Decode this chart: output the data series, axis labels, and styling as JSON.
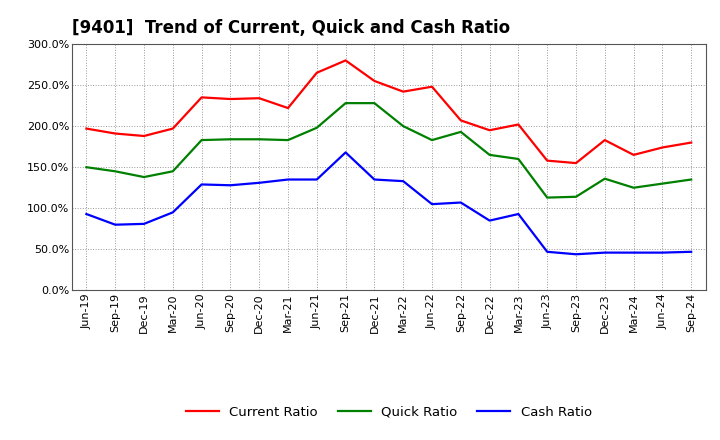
{
  "title": "[9401]  Trend of Current, Quick and Cash Ratio",
  "labels": [
    "Jun-19",
    "Sep-19",
    "Dec-19",
    "Mar-20",
    "Jun-20",
    "Sep-20",
    "Dec-20",
    "Mar-21",
    "Jun-21",
    "Sep-21",
    "Dec-21",
    "Mar-22",
    "Jun-22",
    "Sep-22",
    "Dec-22",
    "Mar-23",
    "Jun-23",
    "Sep-23",
    "Dec-23",
    "Mar-24",
    "Jun-24",
    "Sep-24"
  ],
  "current_ratio": [
    197,
    191,
    188,
    197,
    235,
    233,
    234,
    222,
    265,
    280,
    255,
    242,
    248,
    207,
    195,
    202,
    158,
    155,
    183,
    165,
    174,
    180
  ],
  "quick_ratio": [
    150,
    145,
    138,
    145,
    183,
    184,
    184,
    183,
    198,
    228,
    228,
    200,
    183,
    193,
    165,
    160,
    113,
    114,
    136,
    125,
    130,
    135
  ],
  "cash_ratio": [
    93,
    80,
    81,
    95,
    129,
    128,
    131,
    135,
    135,
    168,
    135,
    133,
    105,
    107,
    85,
    93,
    47,
    44,
    46,
    46,
    46,
    47
  ],
  "current_color": "#FF0000",
  "quick_color": "#008000",
  "cash_color": "#0000FF",
  "ylim": [
    0,
    300
  ],
  "yticks": [
    0,
    50,
    100,
    150,
    200,
    250,
    300
  ],
  "background_color": "#FFFFFF",
  "grid_color": "#AAAAAA",
  "title_fontsize": 12,
  "legend_fontsize": 9.5,
  "tick_fontsize": 8
}
